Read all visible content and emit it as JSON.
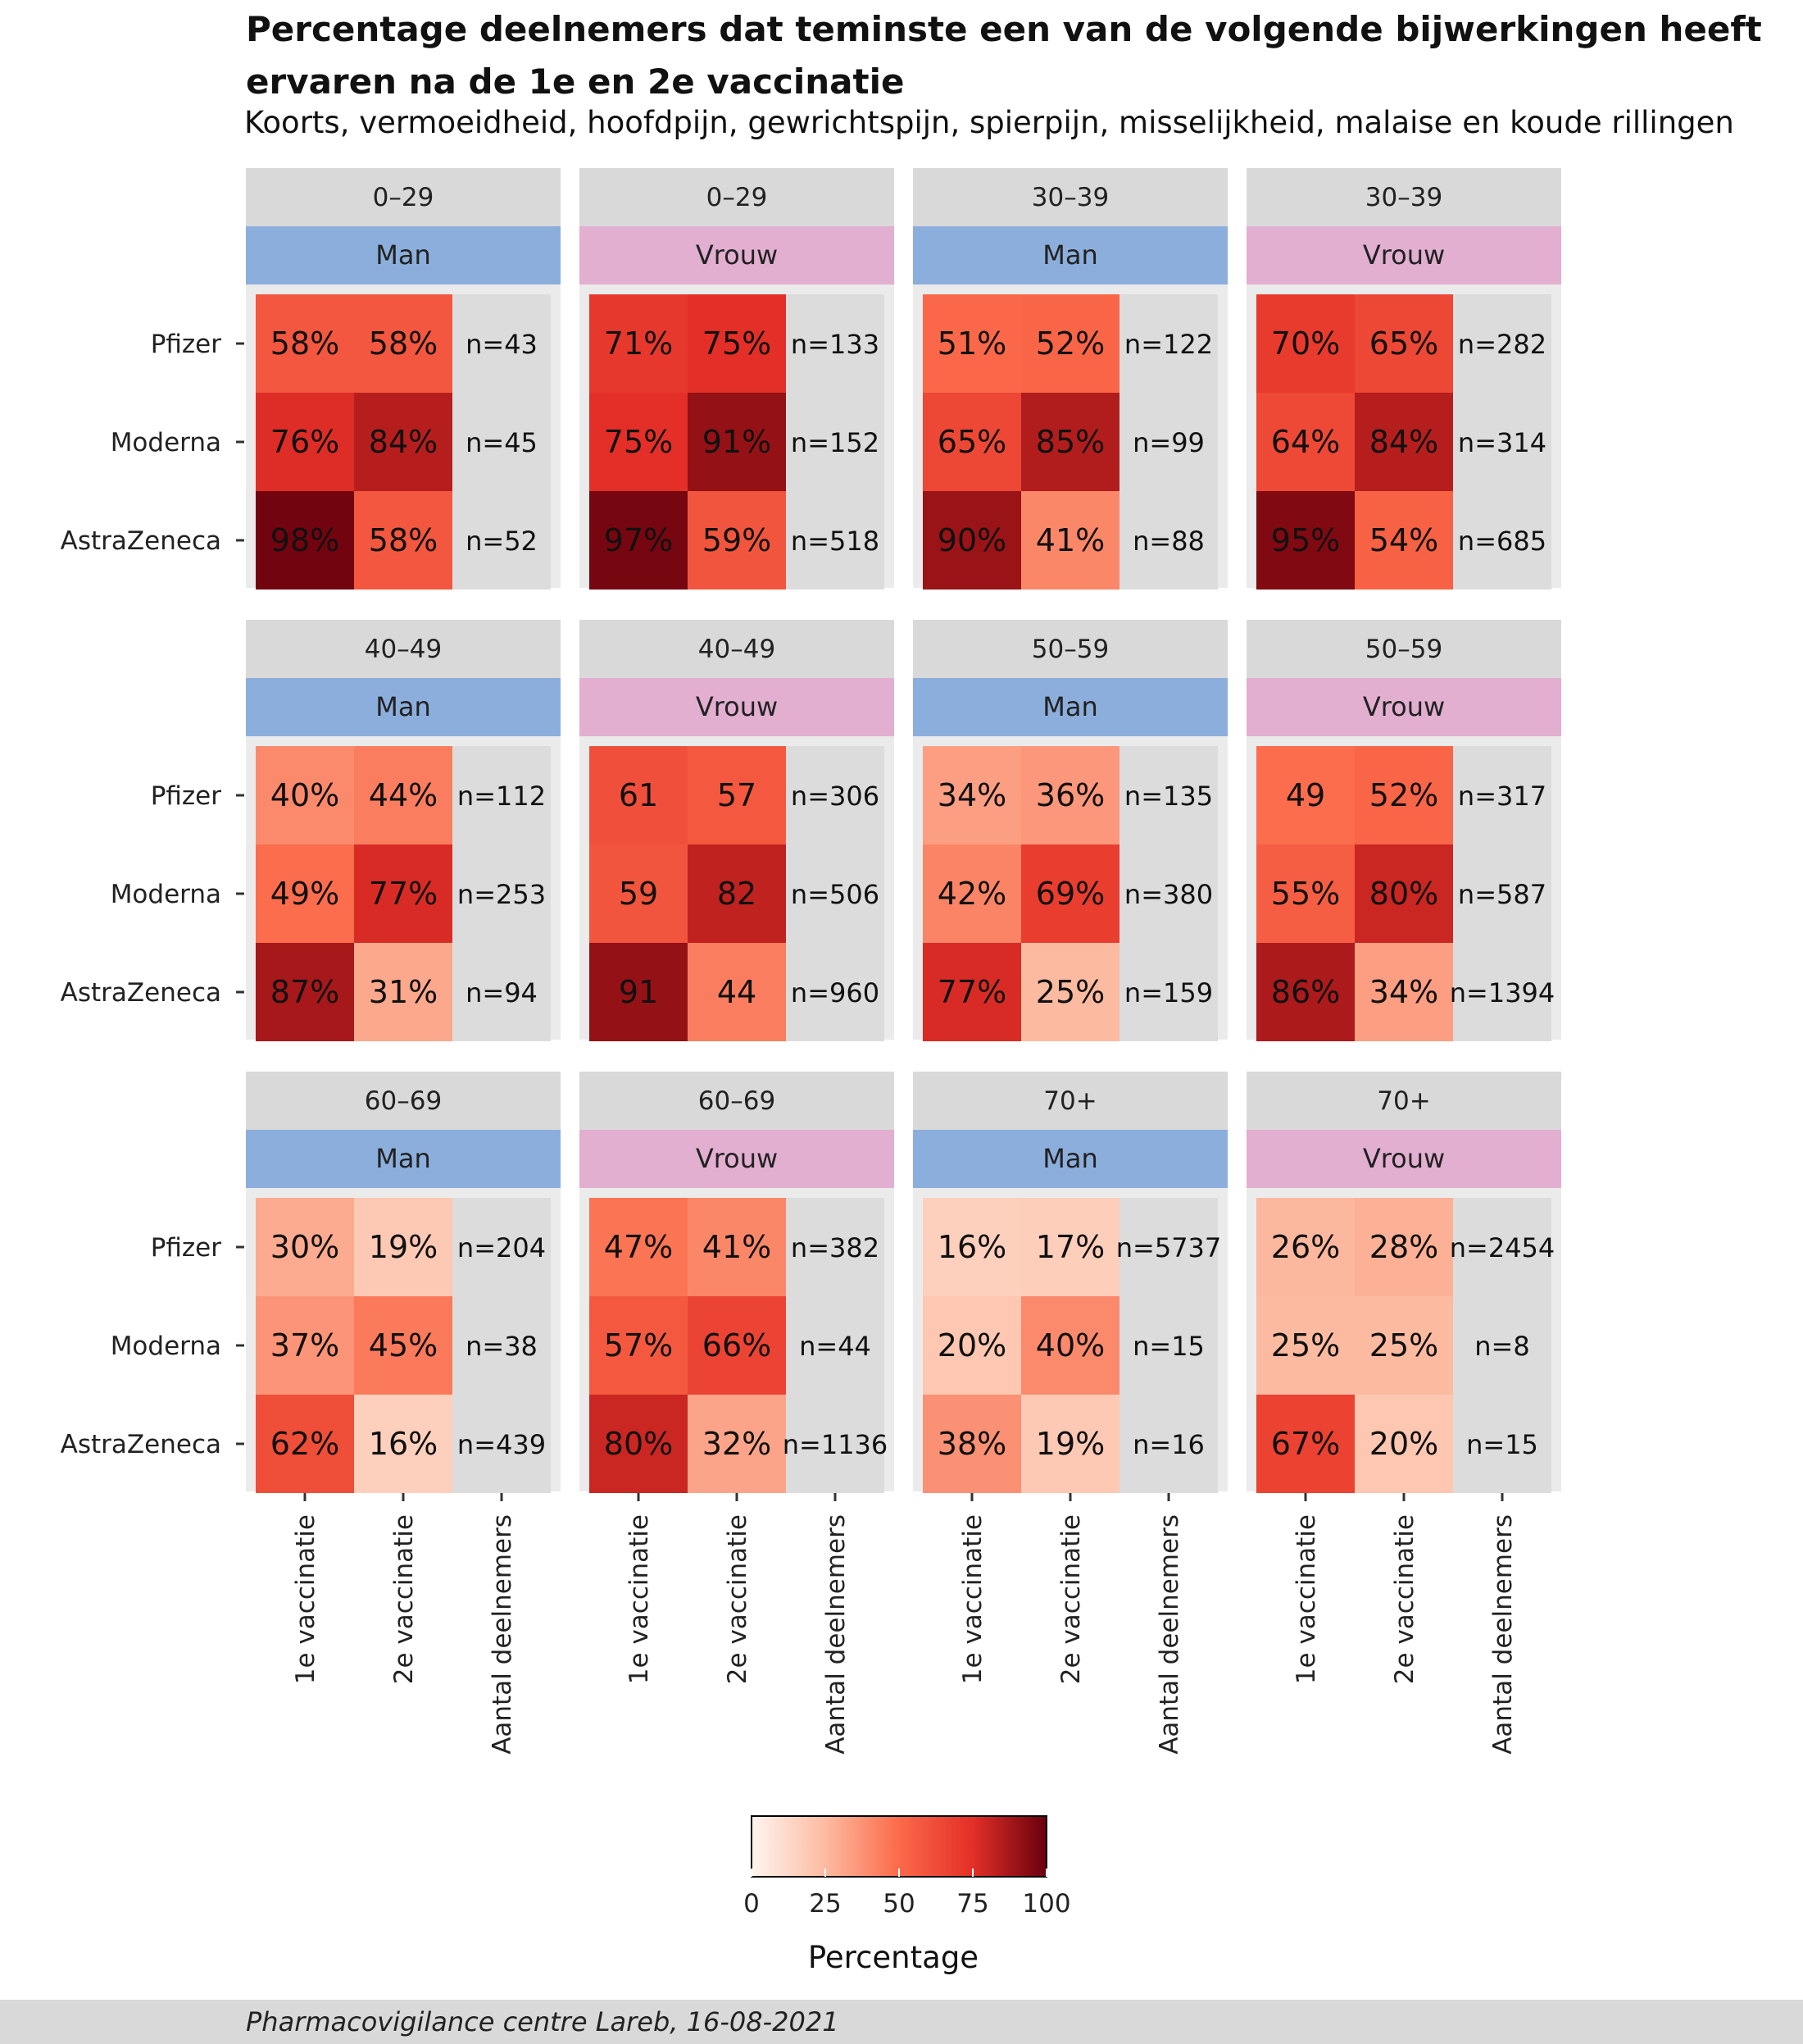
{
  "header": {
    "title": "Percentage deelnemers dat teminste een van de volgende bijwerkingen heeft ervaren na de 1e en 2e vaccinatie",
    "subtitle": "Koorts, vermoeidheid, hoofdpijn, gewrichtspijn, spierpijn, misselijkheid, malaise en koude rillingen"
  },
  "footer": {
    "caption": "Pharmacovigilance centre Lareb, 16-08-2021"
  },
  "colors": {
    "panel_bg": "#ebebeb",
    "strip_age": "#d9d9d9",
    "strip_man": "#8caedc",
    "strip_vrouw": "#e2afd0",
    "count_cell": "#dcdcdc",
    "scale_low": "#fff5f0",
    "scale_mid": "#ef3b2c",
    "scale_high": "#67000d"
  },
  "chart_data": {
    "type": "heatmap",
    "rows": [
      "Pfizer",
      "Moderna",
      "AstraZeneca"
    ],
    "columns": [
      "1e vaccinatie",
      "2e vaccinatie",
      "Aantal deelnemers"
    ],
    "legend": {
      "title": "Percentage",
      "ticks": [
        "0",
        "25",
        "50",
        "75",
        "100"
      ],
      "range": [
        0,
        100
      ],
      "placement": "bottom"
    },
    "panels": [
      {
        "age": "0–29",
        "sex": "Man",
        "cells": [
          {
            "v1": 58,
            "v2": 58,
            "l1": "58%",
            "l2": "58%",
            "n": "n=43"
          },
          {
            "v1": 76,
            "v2": 84,
            "l1": "76%",
            "l2": "84%",
            "n": "n=45"
          },
          {
            "v1": 98,
            "v2": 58,
            "l1": "98%",
            "l2": "58%",
            "n": "n=52"
          }
        ]
      },
      {
        "age": "0–29",
        "sex": "Vrouw",
        "cells": [
          {
            "v1": 71,
            "v2": 75,
            "l1": "71%",
            "l2": "75%",
            "n": "n=133"
          },
          {
            "v1": 75,
            "v2": 91,
            "l1": "75%",
            "l2": "91%",
            "n": "n=152"
          },
          {
            "v1": 97,
            "v2": 59,
            "l1": "97%",
            "l2": "59%",
            "n": "n=518"
          }
        ]
      },
      {
        "age": "30–39",
        "sex": "Man",
        "cells": [
          {
            "v1": 51,
            "v2": 52,
            "l1": "51%",
            "l2": "52%",
            "n": "n=122"
          },
          {
            "v1": 65,
            "v2": 85,
            "l1": "65%",
            "l2": "85%",
            "n": "n=99"
          },
          {
            "v1": 90,
            "v2": 41,
            "l1": "90%",
            "l2": "41%",
            "n": "n=88"
          }
        ]
      },
      {
        "age": "30–39",
        "sex": "Vrouw",
        "cells": [
          {
            "v1": 70,
            "v2": 65,
            "l1": "70%",
            "l2": "65%",
            "n": "n=282"
          },
          {
            "v1": 64,
            "v2": 84,
            "l1": "64%",
            "l2": "84%",
            "n": "n=314"
          },
          {
            "v1": 95,
            "v2": 54,
            "l1": "95%",
            "l2": "54%",
            "n": "n=685"
          }
        ]
      },
      {
        "age": "40–49",
        "sex": "Man",
        "cells": [
          {
            "v1": 40,
            "v2": 44,
            "l1": "40%",
            "l2": "44%",
            "n": "n=112"
          },
          {
            "v1": 49,
            "v2": 77,
            "l1": "49%",
            "l2": "77%",
            "n": "n=253"
          },
          {
            "v1": 87,
            "v2": 31,
            "l1": "87%",
            "l2": "31%",
            "n": "n=94"
          }
        ]
      },
      {
        "age": "40–49",
        "sex": "Vrouw",
        "cells": [
          {
            "v1": 61,
            "v2": 57,
            "l1": "61",
            "l2": "57",
            "n": "n=306"
          },
          {
            "v1": 59,
            "v2": 82,
            "l1": "59",
            "l2": "82",
            "n": "n=506"
          },
          {
            "v1": 91,
            "v2": 44,
            "l1": "91",
            "l2": "44",
            "n": "n=960"
          }
        ]
      },
      {
        "age": "50–59",
        "sex": "Man",
        "cells": [
          {
            "v1": 34,
            "v2": 36,
            "l1": "34%",
            "l2": "36%",
            "n": "n=135"
          },
          {
            "v1": 42,
            "v2": 69,
            "l1": "42%",
            "l2": "69%",
            "n": "n=380"
          },
          {
            "v1": 77,
            "v2": 25,
            "l1": "77%",
            "l2": "25%",
            "n": "n=159"
          }
        ]
      },
      {
        "age": "50–59",
        "sex": "Vrouw",
        "cells": [
          {
            "v1": 49,
            "v2": 52,
            "l1": "49",
            "l2": "52%",
            "n": "n=317"
          },
          {
            "v1": 55,
            "v2": 80,
            "l1": "55%",
            "l2": "80%",
            "n": "n=587"
          },
          {
            "v1": 86,
            "v2": 34,
            "l1": "86%",
            "l2": "34%",
            "n": "n=1394"
          }
        ]
      },
      {
        "age": "60–69",
        "sex": "Man",
        "cells": [
          {
            "v1": 30,
            "v2": 19,
            "l1": "30%",
            "l2": "19%",
            "n": "n=204"
          },
          {
            "v1": 37,
            "v2": 45,
            "l1": "37%",
            "l2": "45%",
            "n": "n=38"
          },
          {
            "v1": 62,
            "v2": 16,
            "l1": "62%",
            "l2": "16%",
            "n": "n=439"
          }
        ]
      },
      {
        "age": "60–69",
        "sex": "Vrouw",
        "cells": [
          {
            "v1": 47,
            "v2": 41,
            "l1": "47%",
            "l2": "41%",
            "n": "n=382"
          },
          {
            "v1": 57,
            "v2": 66,
            "l1": "57%",
            "l2": "66%",
            "n": "n=44"
          },
          {
            "v1": 80,
            "v2": 32,
            "l1": "80%",
            "l2": "32%",
            "n": "n=1136"
          }
        ]
      },
      {
        "age": "70+",
        "sex": "Man",
        "cells": [
          {
            "v1": 16,
            "v2": 17,
            "l1": "16%",
            "l2": "17%",
            "n": "n=5737"
          },
          {
            "v1": 20,
            "v2": 40,
            "l1": "20%",
            "l2": "40%",
            "n": "n=15"
          },
          {
            "v1": 38,
            "v2": 19,
            "l1": "38%",
            "l2": "19%",
            "n": "n=16"
          }
        ]
      },
      {
        "age": "70+",
        "sex": "Vrouw",
        "cells": [
          {
            "v1": 26,
            "v2": 28,
            "l1": "26%",
            "l2": "28%",
            "n": "n=2454"
          },
          {
            "v1": 25,
            "v2": 25,
            "l1": "25%",
            "l2": "25%",
            "n": "n=8"
          },
          {
            "v1": 67,
            "v2": 20,
            "l1": "67%",
            "l2": "20%",
            "n": "n=15"
          }
        ]
      }
    ]
  }
}
